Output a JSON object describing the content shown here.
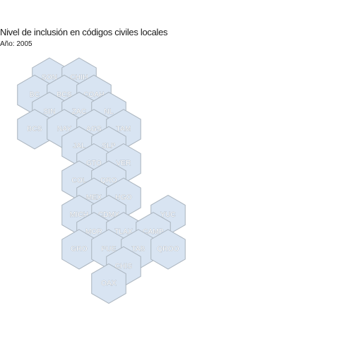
{
  "header": {
    "title": "Nivel de inclusión en códigos civiles locales",
    "subtitle": "Año: 2005"
  },
  "colors": {
    "hex_fill": "#d8e4f2",
    "hex_stroke": "#a9b3bd",
    "label_text": "#ffffff"
  },
  "map": {
    "cells": [
      {
        "label": "SON",
        "col": 2,
        "row": 0
      },
      {
        "label": "CHIH",
        "col": 4,
        "row": 0
      },
      {
        "label": "BC",
        "col": 1,
        "row": 1
      },
      {
        "label": "BCS",
        "col": 3,
        "row": 1
      },
      {
        "label": "COAH",
        "col": 5,
        "row": 1
      },
      {
        "label": "SIN",
        "col": 2,
        "row": 2
      },
      {
        "label": "ZAC",
        "col": 4,
        "row": 2
      },
      {
        "label": "NL",
        "col": 6,
        "row": 2
      },
      {
        "label": "BCS",
        "col": 1,
        "row": 3
      },
      {
        "label": "NAY",
        "col": 3,
        "row": 3
      },
      {
        "label": "AGS",
        "col": 5,
        "row": 3
      },
      {
        "label": "TAM",
        "col": 7,
        "row": 3
      },
      {
        "label": "JAL",
        "col": 4,
        "row": 4
      },
      {
        "label": "SLP",
        "col": 6,
        "row": 4
      },
      {
        "label": "GTO",
        "col": 5,
        "row": 5
      },
      {
        "label": "VER",
        "col": 7,
        "row": 5
      },
      {
        "label": "COL",
        "col": 4,
        "row": 6
      },
      {
        "label": "QRO",
        "col": 6,
        "row": 6
      },
      {
        "label": "MEX",
        "col": 5,
        "row": 7
      },
      {
        "label": "HGO",
        "col": 7,
        "row": 7
      },
      {
        "label": "MICH",
        "col": 4,
        "row": 8
      },
      {
        "label": "CDMX",
        "col": 6,
        "row": 8
      },
      {
        "label": "YUC",
        "col": 10,
        "row": 8
      },
      {
        "label": "MOR",
        "col": 5,
        "row": 9
      },
      {
        "label": "TLAX",
        "col": 7,
        "row": 9
      },
      {
        "label": "CAMP",
        "col": 9,
        "row": 9
      },
      {
        "label": "GRO",
        "col": 4,
        "row": 10
      },
      {
        "label": "PUE",
        "col": 6,
        "row": 10
      },
      {
        "label": "TAB",
        "col": 8,
        "row": 10
      },
      {
        "label": "QROO",
        "col": 10,
        "row": 10
      },
      {
        "label": "CHIS",
        "col": 7,
        "row": 11
      },
      {
        "label": "OAX",
        "col": 6,
        "row": 12
      }
    ]
  }
}
